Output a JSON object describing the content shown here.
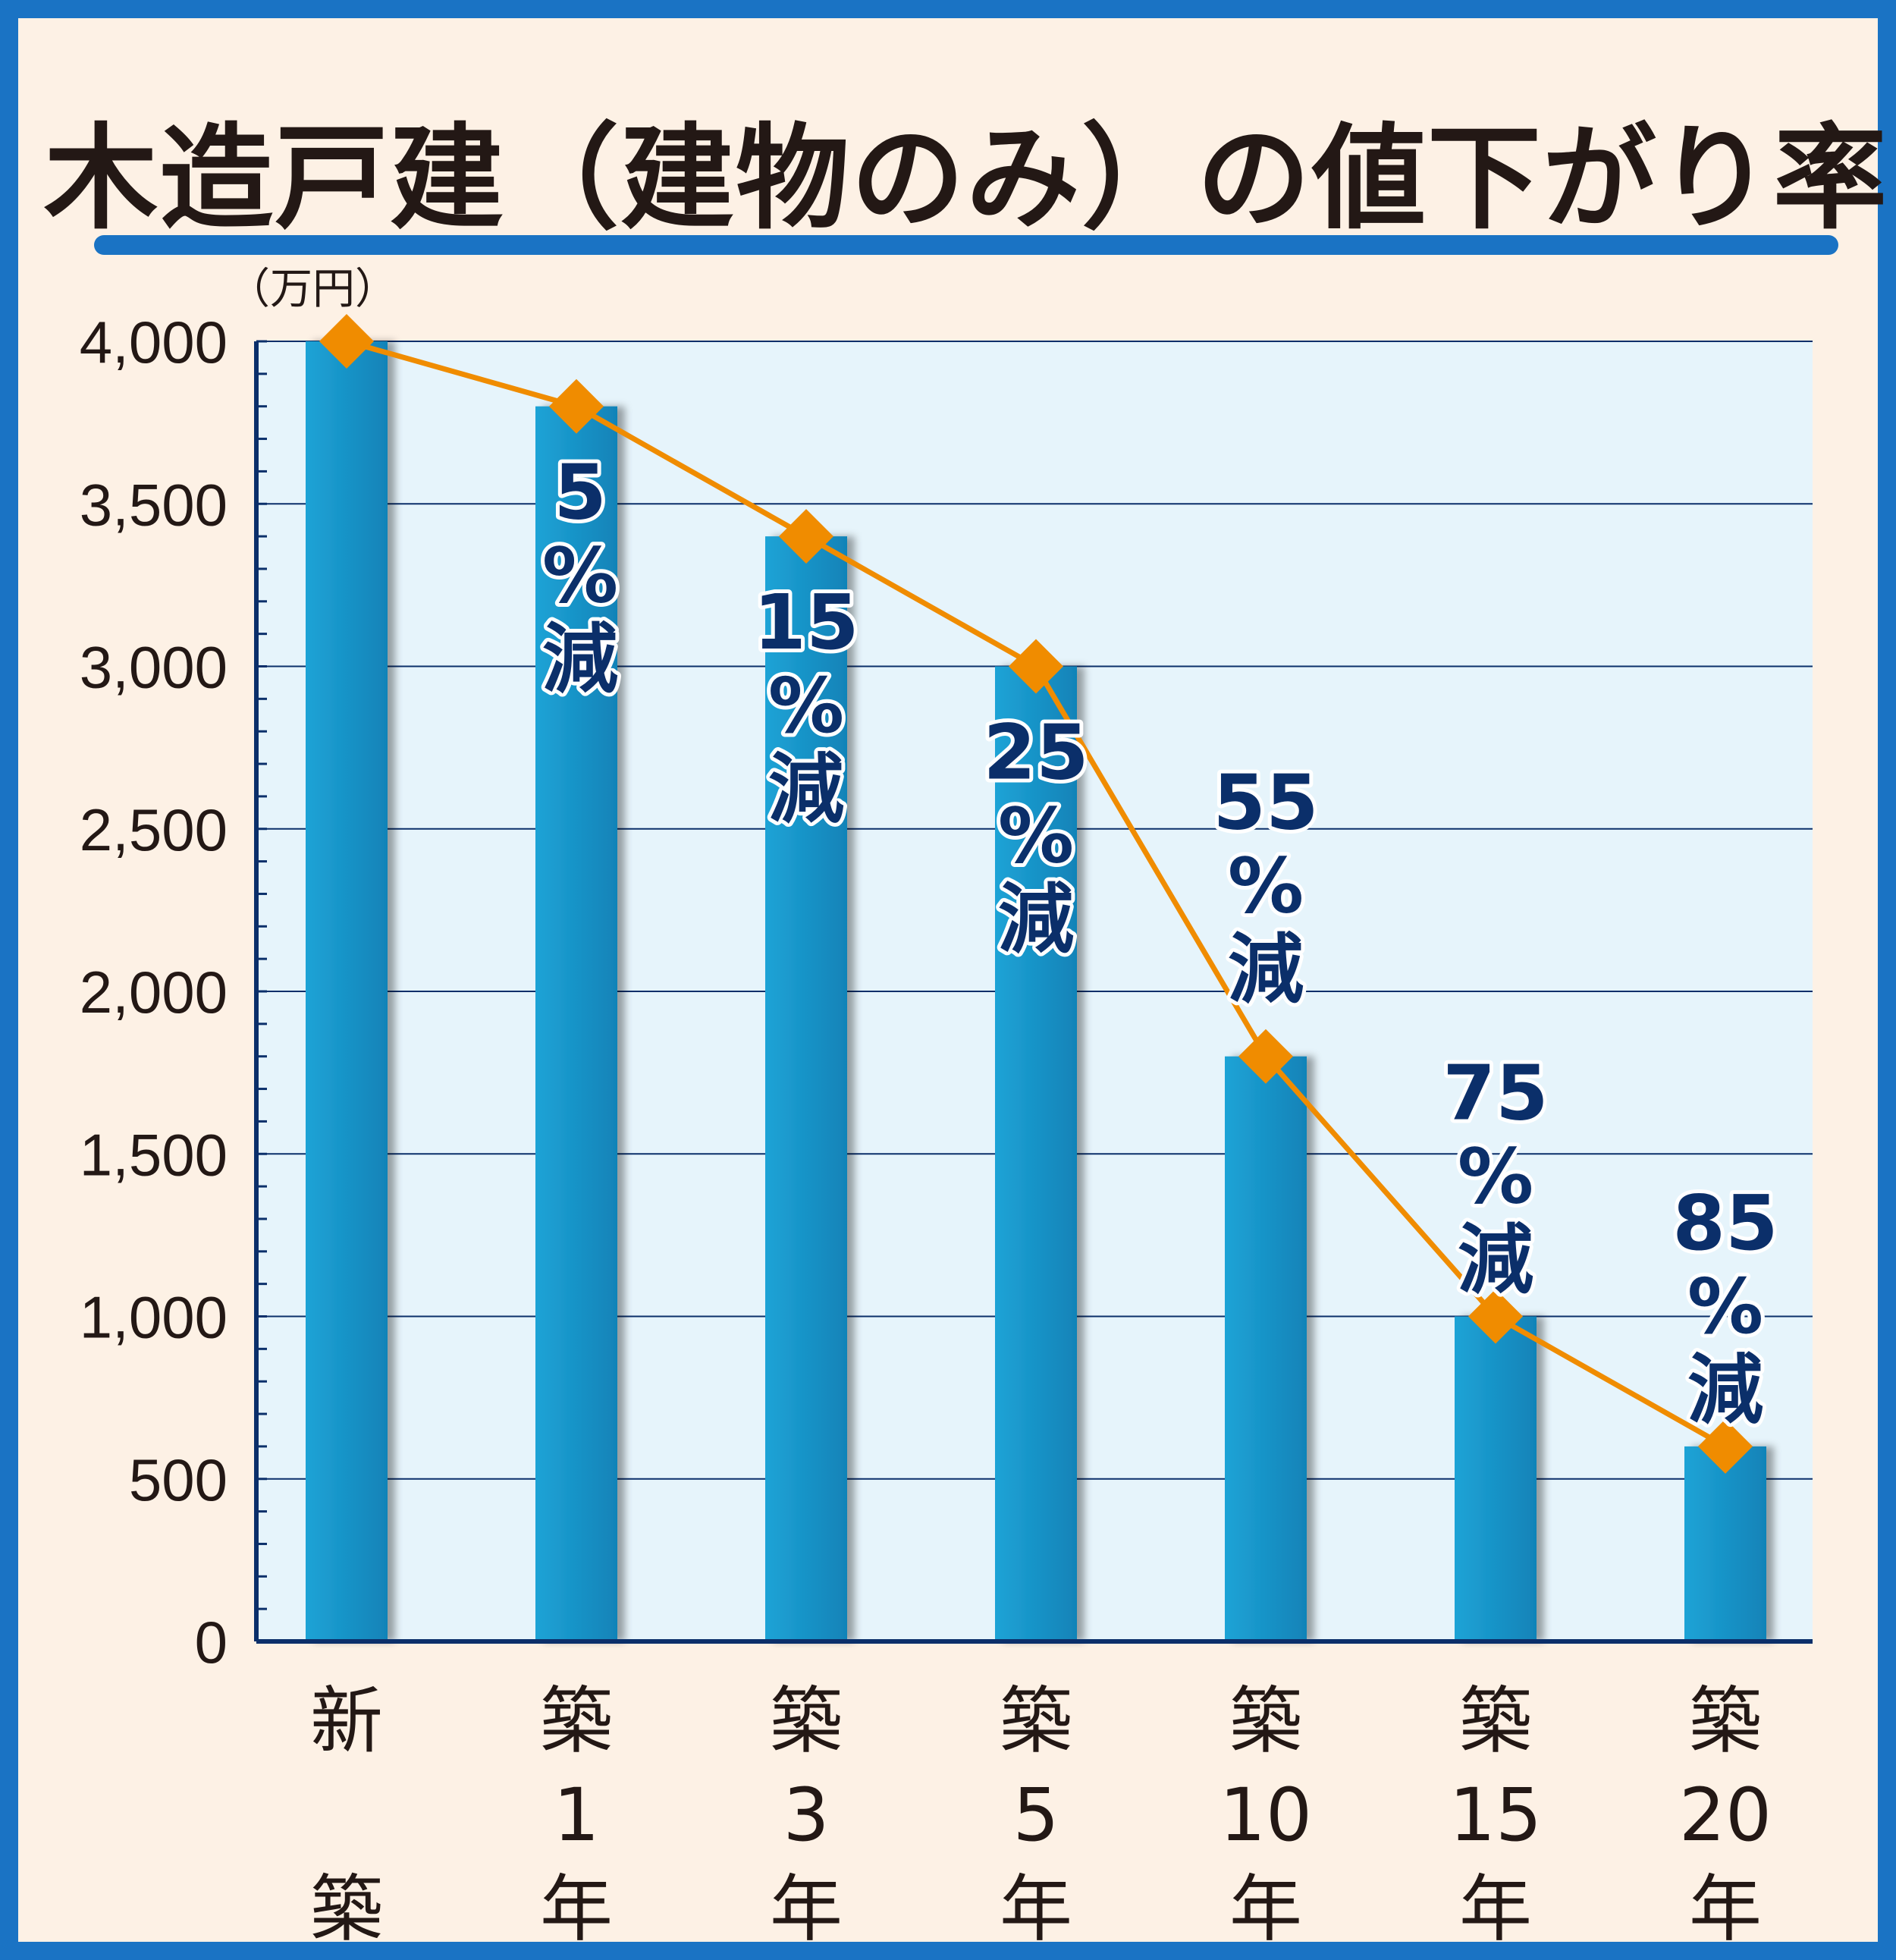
{
  "title": "木造戸建（建物のみ）の値下がり率",
  "colors": {
    "frame": "#1a73c4",
    "background": "#fdf1e5",
    "plot_background": "#e6f4fb",
    "bar": "#1897cc",
    "line": "#f08c00",
    "label_text": "#0b2f6a",
    "axis": "#0b2f6a"
  },
  "chart_data": {
    "type": "bar",
    "unit_label": "（万円）",
    "ylim": [
      0,
      4000
    ],
    "yticks": [
      "0",
      "500",
      "1,000",
      "1,500",
      "2,000",
      "2,500",
      "3,000",
      "3,500",
      "4,000"
    ],
    "ytick_values": [
      0,
      500,
      1000,
      1500,
      2000,
      2500,
      3000,
      3500,
      4000
    ],
    "grid": true,
    "categories": [
      {
        "lines": [
          "新",
          "",
          "築"
        ]
      },
      {
        "lines": [
          "築",
          "1",
          "年"
        ]
      },
      {
        "lines": [
          "築",
          "3",
          "年"
        ]
      },
      {
        "lines": [
          "築",
          "5",
          "年"
        ]
      },
      {
        "lines": [
          "築",
          "10",
          "年"
        ]
      },
      {
        "lines": [
          "築",
          "15",
          "年"
        ]
      },
      {
        "lines": [
          "築",
          "20",
          "年"
        ]
      }
    ],
    "values": [
      4000,
      3800,
      3400,
      3000,
      1800,
      1000,
      600
    ],
    "line_overlay": true,
    "annotations": [
      {
        "lines": []
      },
      {
        "lines": [
          "5",
          "%",
          "減"
        ]
      },
      {
        "lines": [
          "15",
          "%",
          "減"
        ]
      },
      {
        "lines": [
          "25",
          "%",
          "減"
        ]
      },
      {
        "lines": [
          "55",
          "%",
          "減"
        ]
      },
      {
        "lines": [
          "75",
          "%",
          "減"
        ]
      },
      {
        "lines": [
          "85",
          "%",
          "減"
        ]
      }
    ]
  }
}
